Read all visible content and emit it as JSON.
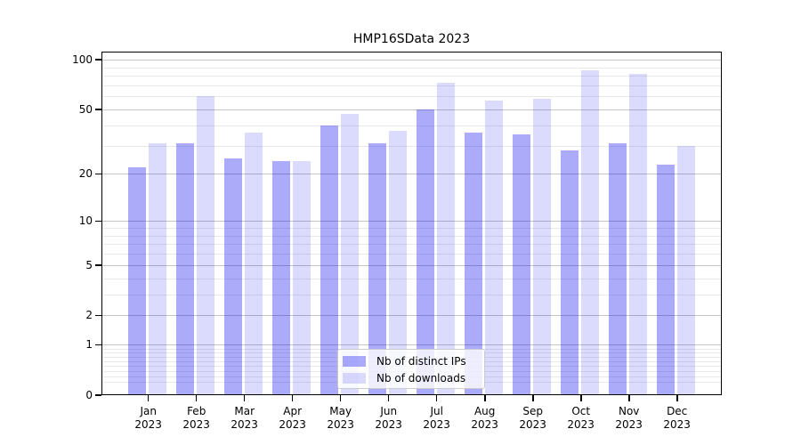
{
  "title": "HMP16SData 2023",
  "legend": {
    "items": [
      {
        "label": "Nb of distinct IPs"
      },
      {
        "label": "Nb of downloads"
      }
    ]
  },
  "colors": {
    "ips_bar": "rgba(13,13,242,0.35)",
    "downloads_bar": "rgba(13,13,242,0.15)",
    "grid_major": "#c4c4c4",
    "grid_minor": "#e9e9e9",
    "axis": "#000000",
    "background": "#ffffff"
  },
  "chart_data": {
    "type": "bar",
    "title": "HMP16SData 2023",
    "categories": [
      "Jan 2023",
      "Feb 2023",
      "Mar 2023",
      "Apr 2023",
      "May 2023",
      "Jun 2023",
      "Jul 2023",
      "Aug 2023",
      "Sep 2023",
      "Oct 2023",
      "Nov 2023",
      "Dec 2023"
    ],
    "series": [
      {
        "name": "Nb of distinct IPs",
        "values": [
          22,
          31,
          25,
          24,
          40,
          31,
          50,
          36,
          35,
          28,
          31,
          23
        ]
      },
      {
        "name": "Nb of downloads",
        "values": [
          31,
          60,
          36,
          24,
          47,
          37,
          73,
          57,
          58,
          86,
          82,
          30
        ]
      }
    ],
    "xlabel": "",
    "ylabel": "",
    "yscale": "log10(value+1)",
    "ylim": [
      0,
      110
    ],
    "ytick_values": [
      0,
      1,
      2,
      5,
      10,
      20,
      50,
      100
    ],
    "ytick_labels": [
      "0",
      "1",
      "2",
      "5",
      "10",
      "20",
      "50",
      "100"
    ],
    "minor_gridline_values": [
      0.2,
      0.3,
      0.4,
      0.5,
      0.6,
      0.7,
      0.8,
      0.9,
      3,
      4,
      6,
      7,
      8,
      9,
      30,
      40,
      60,
      70,
      80,
      90
    ],
    "grid": true,
    "legend_position": "lower center"
  }
}
